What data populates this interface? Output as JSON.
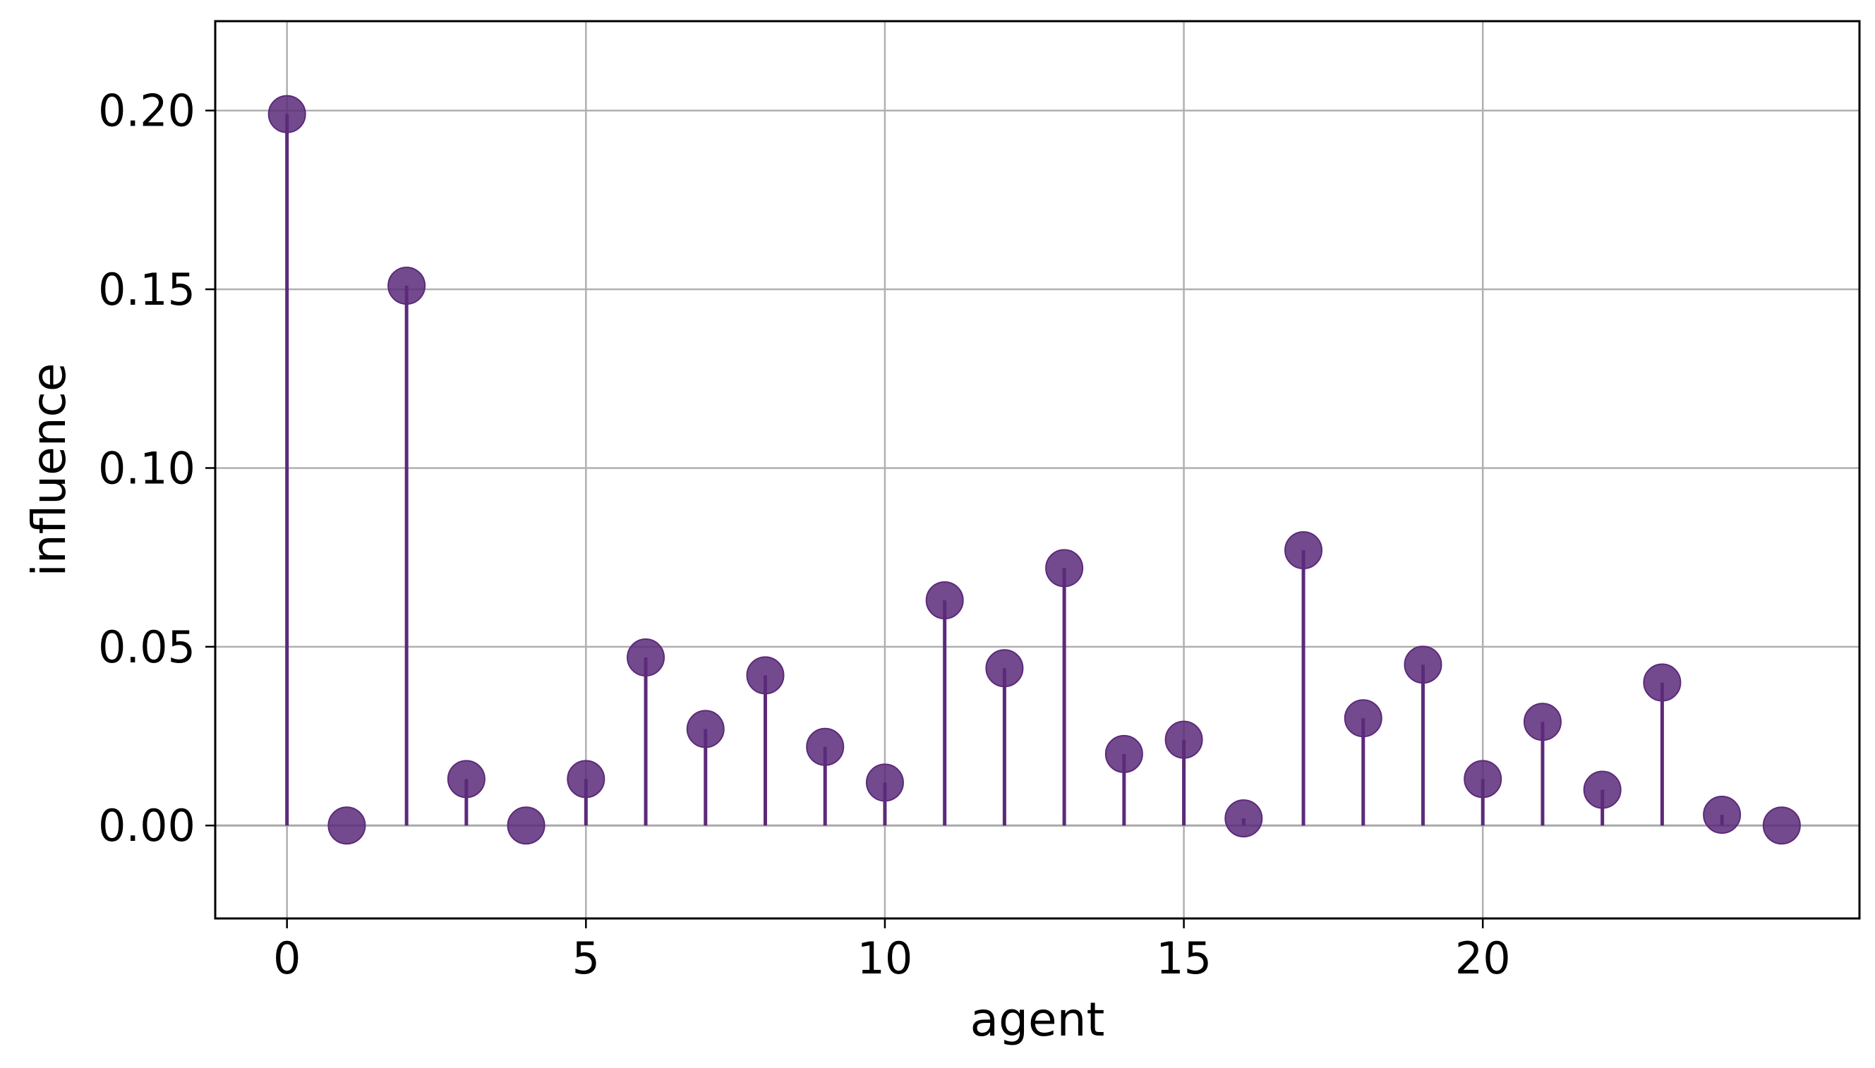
{
  "chart_data": {
    "type": "stem",
    "title": "",
    "xlabel": "agent",
    "ylabel": "influence",
    "x": [
      0,
      1,
      2,
      3,
      4,
      5,
      6,
      7,
      8,
      9,
      10,
      11,
      12,
      13,
      14,
      15,
      16,
      17,
      18,
      19,
      20,
      21,
      22,
      23,
      24,
      25
    ],
    "values": [
      0.199,
      0.0,
      0.151,
      0.013,
      0.0,
      0.013,
      0.047,
      0.027,
      0.042,
      0.022,
      0.012,
      0.063,
      0.044,
      0.072,
      0.02,
      0.024,
      0.002,
      0.077,
      0.03,
      0.045,
      0.013,
      0.029,
      0.01,
      0.04,
      0.003,
      0.0
    ],
    "xlim": [
      -1.2,
      26.3
    ],
    "ylim": [
      -0.026,
      0.225
    ],
    "xticks": [
      0,
      5,
      10,
      15,
      20
    ],
    "xtick_labels": [
      "0",
      "5",
      "10",
      "15",
      "20"
    ],
    "yticks": [
      0.0,
      0.05,
      0.1,
      0.15,
      0.2
    ],
    "ytick_labels": [
      "0.00",
      "0.05",
      "0.10",
      "0.15",
      "0.20"
    ],
    "grid": true,
    "colors": {
      "marker": "#5c2a7a",
      "stem": "#5c2a7a",
      "baseline": "#a9a9a9",
      "grid": "#b0b0b0"
    }
  }
}
